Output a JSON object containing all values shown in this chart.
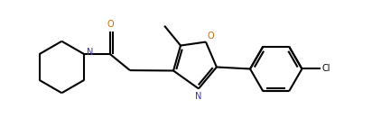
{
  "bg_color": "#ffffff",
  "line_color": "#000000",
  "N_color": "#3333bb",
  "O_color": "#cc6600",
  "bond_width": 1.5,
  "figsize": [
    4.12,
    1.41
  ],
  "dpi": 100,
  "xlim": [
    0.0,
    10.0
  ],
  "ylim": [
    0.5,
    4.0
  ]
}
